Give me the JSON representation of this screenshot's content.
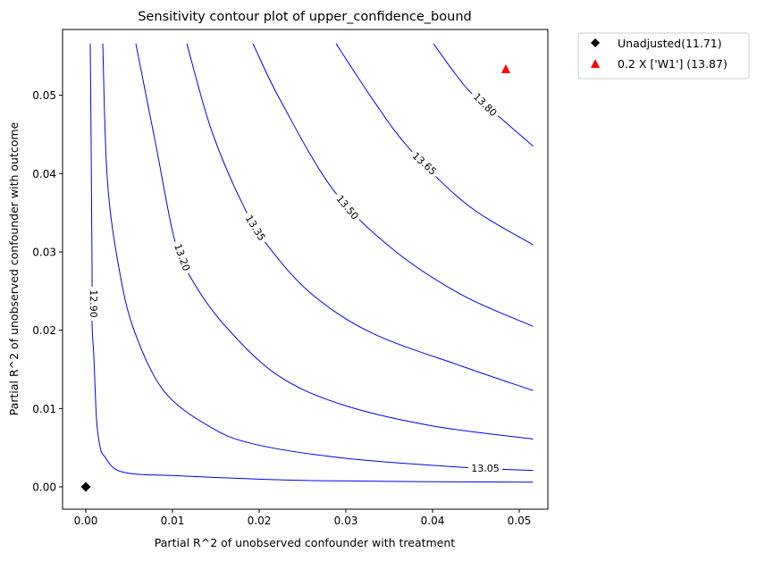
{
  "chart_data": {
    "type": "contour",
    "title": "Sensitivity contour plot of upper_confidence_bound",
    "xlabel": "Partial R^2 of unobserved confounder with treatment",
    "ylabel": "Partial R^2 of unobserved confounder with outcome",
    "xlim": [
      -0.00268,
      0.0533
    ],
    "ylim": [
      -0.00285,
      0.0584
    ],
    "grid": false,
    "xticks": [
      0.0,
      0.01,
      0.02,
      0.03,
      0.04,
      0.05
    ],
    "xtick_labels": [
      "0.00",
      "0.01",
      "0.02",
      "0.03",
      "0.04",
      "0.05"
    ],
    "yticks": [
      0.0,
      0.01,
      0.02,
      0.03,
      0.04,
      0.05
    ],
    "ytick_labels": [
      "0.00",
      "0.01",
      "0.02",
      "0.03",
      "0.04",
      "0.05"
    ],
    "line_color": "#0000ff",
    "contours": [
      {
        "level": "12.90",
        "points": [
          [
            0.00052,
            0.0566
          ],
          [
            0.00072,
            0.028
          ],
          [
            0.00072,
            0.0208
          ],
          [
            0.00093,
            0.0166
          ],
          [
            0.00124,
            0.0086
          ],
          [
            0.00165,
            0.0051
          ],
          [
            0.00216,
            0.0039
          ],
          [
            0.00423,
            0.0019
          ],
          [
            0.011,
            0.0014
          ],
          [
            0.0262,
            0.0008
          ],
          [
            0.0516,
            0.0006
          ]
        ]
      },
      {
        "level": "13.05",
        "points": [
          [
            0.00196,
            0.0566
          ],
          [
            0.00247,
            0.0394
          ],
          [
            0.00381,
            0.028
          ],
          [
            0.00557,
            0.02
          ],
          [
            0.00897,
            0.0123
          ],
          [
            0.01412,
            0.0078
          ],
          [
            0.01928,
            0.0055
          ],
          [
            0.02959,
            0.0037
          ],
          [
            0.0434,
            0.0025
          ],
          [
            0.0516,
            0.0021
          ]
        ]
      },
      {
        "level": "13.20",
        "points": [
          [
            0.00577,
            0.0566
          ],
          [
            0.00809,
            0.0436
          ],
          [
            0.01021,
            0.0317
          ],
          [
            0.01206,
            0.0268
          ],
          [
            0.01588,
            0.0208
          ],
          [
            0.02206,
            0.0143
          ],
          [
            0.02959,
            0.0105
          ],
          [
            0.0399,
            0.0078
          ],
          [
            0.0516,
            0.0061
          ]
        ]
      },
      {
        "level": "13.35",
        "points": [
          [
            0.01165,
            0.0566
          ],
          [
            0.01454,
            0.0454
          ],
          [
            0.01835,
            0.0355
          ],
          [
            0.02134,
            0.0303
          ],
          [
            0.02619,
            0.0245
          ],
          [
            0.03309,
            0.0196
          ],
          [
            0.0434,
            0.0154
          ],
          [
            0.0516,
            0.0123
          ]
        ]
      },
      {
        "level": "13.50",
        "points": [
          [
            0.01928,
            0.0566
          ],
          [
            0.02247,
            0.0493
          ],
          [
            0.02856,
            0.0379
          ],
          [
            0.03546,
            0.0303
          ],
          [
            0.0434,
            0.0245
          ],
          [
            0.0516,
            0.0205
          ]
        ]
      },
      {
        "level": "13.65",
        "points": [
          [
            0.02887,
            0.0566
          ],
          [
            0.0332,
            0.0493
          ],
          [
            0.03732,
            0.0432
          ],
          [
            0.04402,
            0.036
          ],
          [
            0.0516,
            0.0309
          ]
        ]
      },
      {
        "level": "13.80",
        "points": [
          [
            0.0401,
            0.0566
          ],
          [
            0.04402,
            0.0508
          ],
          [
            0.04794,
            0.047
          ],
          [
            0.0516,
            0.0435
          ]
        ]
      }
    ],
    "markers": [
      {
        "label": "Unadjusted(11.71)",
        "x": 0.0,
        "y": 0.0,
        "shape": "diamond",
        "color": "#000000"
      },
      {
        "label": "0.2 X ['W1'] (13.87)",
        "x": 0.04845,
        "y": 0.0534,
        "shape": "triangle",
        "color": "#ff0000"
      }
    ],
    "legend_position": "outside-top-right"
  }
}
